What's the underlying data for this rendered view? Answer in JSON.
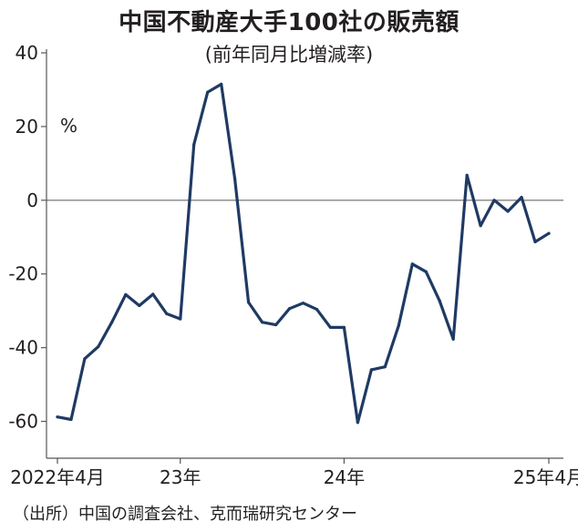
{
  "title": "中国不動産大手100社の販売額",
  "subtitle": "(前年同月比増減率)",
  "source": "（出所）中国の調査会社、克而瑞研究センター",
  "colors": {
    "line": "#1f3a63",
    "axis": "#555555",
    "zero_line": "#555555"
  },
  "chart_data": {
    "type": "line",
    "title": "中国不動産大手100社の販売額",
    "subtitle": "(前年同月比増減率)",
    "unit": "%",
    "ylim": [
      -70,
      40
    ],
    "y_ticks": [
      40,
      20,
      0,
      -20,
      -40,
      -60
    ],
    "y_tick_labels": [
      "40",
      "20",
      "0",
      "-20",
      "-40",
      "-60"
    ],
    "x_tick_labels": [
      {
        "index": 0,
        "label": "2022年4月"
      },
      {
        "index": 9,
        "label": "23年"
      },
      {
        "index": 21,
        "label": "24年"
      },
      {
        "index": 36,
        "label": "25年4月"
      }
    ],
    "grid": false,
    "zero_line": true,
    "series": [
      {
        "values": [
          -58.8,
          -59.5,
          -43,
          -39.7,
          -33,
          -25.6,
          -28.6,
          -25.5,
          -30.8,
          -32.2,
          15.1,
          29.3,
          31.5,
          5.8,
          -27.7,
          -33.1,
          -33.8,
          -29.4,
          -27.9,
          -29.6,
          -34.5,
          -34.5,
          -60.3,
          -46,
          -45.2,
          -34,
          -17.3,
          -19.4,
          -27.3,
          -37.7,
          6.8,
          -6.9,
          0,
          -3,
          0.8,
          -11.3,
          -9
        ]
      }
    ]
  }
}
